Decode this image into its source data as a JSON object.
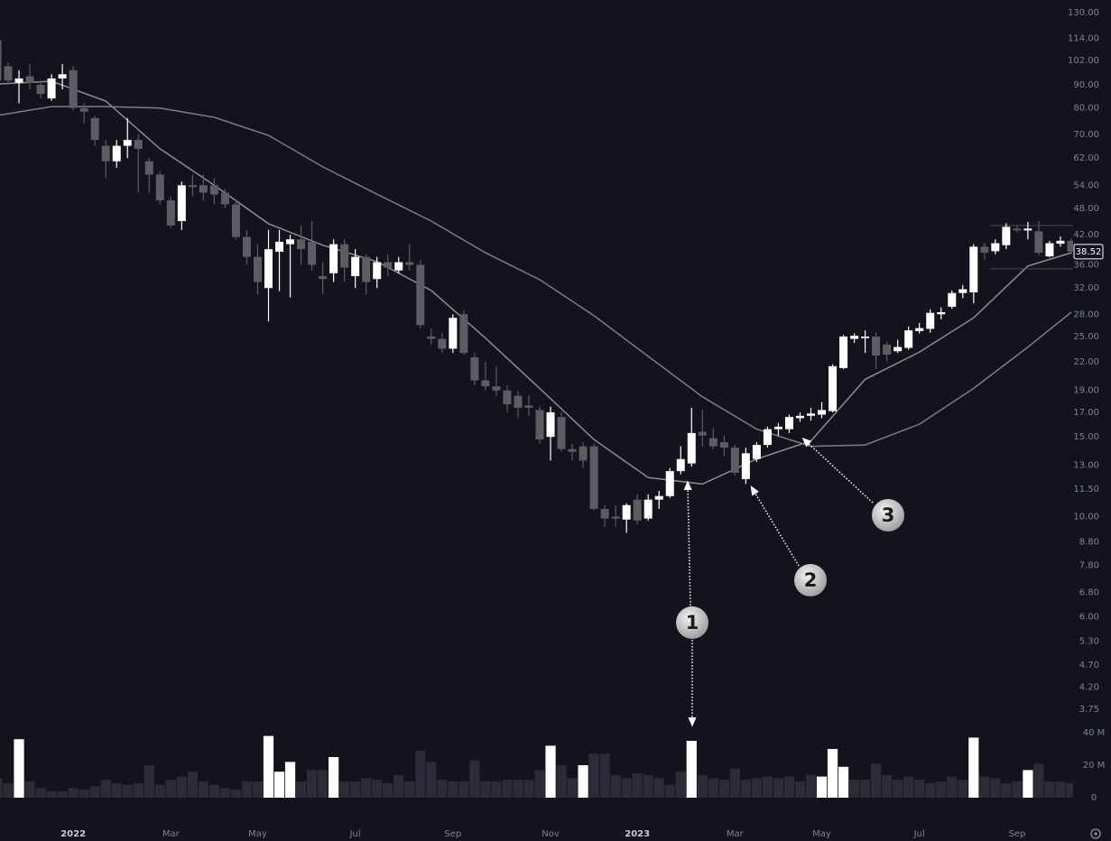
{
  "chart_data": {
    "type": "candlestick",
    "categories": [
      null,
      null,
      null,
      null,
      null,
      null,
      null,
      "2022",
      null,
      null,
      null,
      null,
      null,
      null,
      null,
      null,
      "Mar",
      null,
      null,
      null,
      null,
      null,
      null,
      null,
      "May",
      null,
      null,
      null,
      null,
      null,
      null,
      null,
      null,
      "Jul",
      null,
      null,
      null,
      null,
      null,
      null,
      null,
      null,
      "Sep",
      null,
      null,
      null,
      null,
      null,
      null,
      null,
      null,
      "Nov",
      null,
      null,
      null,
      null,
      null,
      null,
      null,
      "2023",
      null,
      null,
      null,
      null,
      null,
      null,
      null,
      null,
      "Mar",
      null,
      null,
      null,
      null,
      null,
      null,
      null,
      "May",
      null,
      null,
      null,
      null,
      null,
      null,
      null,
      null,
      "Jul",
      null,
      null,
      null,
      null,
      null,
      null,
      null,
      null,
      "Sep",
      null,
      null,
      null,
      null,
      null
    ],
    "open": [
      113,
      99,
      91,
      94,
      90,
      84,
      93,
      97,
      80,
      76,
      66,
      61,
      66,
      68,
      61,
      57,
      50,
      45,
      54,
      54,
      54,
      52,
      49,
      41.5,
      37.5,
      32,
      38.5,
      40,
      41,
      40.5,
      34,
      34.5,
      40,
      34,
      37.5,
      33.5,
      36.5,
      35,
      36.5,
      36,
      25,
      24.7,
      23.5,
      28,
      22.5,
      20,
      19.4,
      19,
      18.5,
      17.6,
      17.2,
      15,
      16.6,
      14.1,
      14.3,
      14.3,
      10.4,
      10,
      9.85,
      10.9,
      9.9,
      10.9,
      11.1,
      12.6,
      13.1,
      15.4,
      14.9,
      14.6,
      14.2,
      12.1,
      13.4,
      14.4,
      15.6,
      15.6,
      16.5,
      16.7,
      16.8,
      17.1,
      21.3,
      24.7,
      24.8,
      25,
      24,
      23.2,
      23.6,
      25.7,
      26,
      28,
      29.1,
      31.2,
      31.3,
      39.5,
      38.6,
      39.8,
      43.3,
      42.9,
      42.7,
      37.6,
      40.1,
      40.7
    ],
    "high": [
      114,
      101,
      97,
      100,
      92,
      95,
      100,
      99,
      82,
      77,
      68,
      68,
      76,
      70,
      62,
      58,
      51,
      55,
      57,
      57,
      56,
      53,
      50,
      43,
      40,
      43,
      43,
      42,
      44,
      45,
      36.5,
      41,
      41,
      39,
      38,
      37.5,
      38,
      37.5,
      40,
      37,
      26,
      25.5,
      28,
      28.5,
      23,
      22,
      21.5,
      19.5,
      19,
      18.5,
      17.5,
      17.5,
      17,
      14.5,
      14.6,
      14.5,
      10.6,
      10.6,
      10.7,
      11.2,
      11.2,
      11.4,
      12.8,
      14.3,
      17.4,
      17.2,
      15.7,
      15.1,
      14.4,
      14.2,
      14.6,
      15.8,
      16.1,
      16.8,
      17,
      17.4,
      17.9,
      21.7,
      25.2,
      25.4,
      25.8,
      25.5,
      24.4,
      24.6,
      26.3,
      26.8,
      28.7,
      29,
      31.6,
      32.5,
      40,
      40.3,
      41,
      44.5,
      44,
      44.8,
      45,
      40.7,
      41.6,
      41.2
    ],
    "low": [
      90,
      90,
      82,
      88,
      84,
      83,
      88,
      79,
      74,
      66,
      56,
      59,
      62,
      52,
      52,
      49,
      43.5,
      43,
      51,
      50,
      49,
      48,
      41,
      36,
      31,
      27,
      31.5,
      30.5,
      36,
      35,
      31,
      33,
      33,
      32,
      31,
      32,
      34,
      34.5,
      35,
      26,
      24,
      23,
      23,
      22.8,
      19.5,
      19,
      18.5,
      17,
      16.5,
      16.7,
      14.5,
      13.3,
      13.9,
      13.3,
      12.8,
      10.3,
      9.5,
      9.5,
      9.2,
      9.6,
      9.8,
      10.4,
      11,
      12.4,
      12.9,
      14.3,
      14.1,
      13.6,
      12.3,
      11.8,
      13.2,
      14.2,
      15.1,
      15.3,
      16.2,
      16.3,
      16.5,
      17,
      21.2,
      24.2,
      23,
      21.2,
      22,
      23,
      23.4,
      25.4,
      25.5,
      27.3,
      28.8,
      30.4,
      29.6,
      37,
      38,
      39,
      42.4,
      41,
      37.8,
      37.4,
      39.5,
      38
    ],
    "close": [
      92,
      92,
      93,
      91,
      86,
      93,
      95,
      80,
      78.5,
      68,
      61,
      66,
      68,
      65,
      57,
      50,
      44,
      54,
      53.5,
      52,
      51.5,
      49,
      41.5,
      37.5,
      33,
      39,
      40.5,
      41,
      39,
      36,
      33.5,
      40,
      35.5,
      37.5,
      33,
      36.5,
      35.5,
      36.5,
      36,
      26.5,
      24.7,
      23.5,
      27.5,
      23,
      20,
      19.4,
      19,
      17.7,
      17.4,
      17.4,
      14.8,
      17,
      14.1,
      13.9,
      13.3,
      10.4,
      9.9,
      9.9,
      10.6,
      9.8,
      10.9,
      11.1,
      12.6,
      13.4,
      15.3,
      15.1,
      14.3,
      14.2,
      12.5,
      13.8,
      14.4,
      15.6,
      15.8,
      16.6,
      16.7,
      16.9,
      17.2,
      21.5,
      25,
      25.1,
      25,
      22.7,
      22.8,
      23.7,
      25.8,
      26.1,
      28.2,
      28.3,
      31.2,
      31.8,
      39.5,
      38.3,
      40.2,
      43.7,
      42.9,
      43.3,
      38.3,
      40.2,
      40.7,
      38.52
    ],
    "up_color": "#ffffff",
    "down_color": "#5c5c63",
    "log_scale": true,
    "grid": false,
    "ylim": [
      3.75,
      130
    ],
    "yticks": [
      {
        "value": 130,
        "label": "130.00"
      },
      {
        "value": 114,
        "label": "114.00"
      },
      {
        "value": 102,
        "label": "102.00"
      },
      {
        "value": 90,
        "label": "90.00"
      },
      {
        "value": 80,
        "label": "80.00"
      },
      {
        "value": 70,
        "label": "70.00"
      },
      {
        "value": 62,
        "label": "62.00"
      },
      {
        "value": 54,
        "label": "54.00"
      },
      {
        "value": 48,
        "label": "48.00"
      },
      {
        "value": 42,
        "label": "42.00"
      },
      {
        "value": 36,
        "label": "36.00"
      },
      {
        "value": 32,
        "label": "32.00"
      },
      {
        "value": 28,
        "label": "28.00"
      },
      {
        "value": 25,
        "label": "25.00"
      },
      {
        "value": 22,
        "label": "22.00"
      },
      {
        "value": 19,
        "label": "19.00"
      },
      {
        "value": 17,
        "label": "17.00"
      },
      {
        "value": 15,
        "label": "15.00"
      },
      {
        "value": 13,
        "label": "13.00"
      },
      {
        "value": 11.5,
        "label": "11.50"
      },
      {
        "value": 10,
        "label": "10.00"
      },
      {
        "value": 8.8,
        "label": "8.80"
      },
      {
        "value": 7.8,
        "label": "7.80"
      },
      {
        "value": 6.8,
        "label": "6.80"
      },
      {
        "value": 6,
        "label": "6.00"
      },
      {
        "value": 5.3,
        "label": "5.30"
      },
      {
        "value": 4.7,
        "label": "4.70"
      },
      {
        "value": 4.2,
        "label": "4.20"
      },
      {
        "value": 3.75,
        "label": "3.75"
      }
    ],
    "moving_averages": [
      {
        "color": "#8c8c94",
        "x": [
          0,
          5,
          10,
          15,
          20,
          25,
          30,
          35,
          40,
          45,
          50,
          55,
          60,
          65,
          70,
          75,
          80,
          85,
          90,
          95,
          99
        ],
        "values": [
          90.4,
          91.7,
          82.9,
          65,
          54,
          44.4,
          39.8,
          36.6,
          31.6,
          24.8,
          19.2,
          14.8,
          12.2,
          11.8,
          13.4,
          14.7,
          20.1,
          23.1,
          27.5,
          35.8,
          38.3
        ]
      },
      {
        "color": "#7c7c84",
        "x": [
          0,
          5,
          10,
          15,
          20,
          25,
          30,
          35,
          40,
          45,
          50,
          55,
          60,
          65,
          70,
          75,
          80,
          85,
          90,
          95,
          99
        ],
        "values": [
          77,
          80.6,
          80.6,
          80,
          76.3,
          69.6,
          59.3,
          51.6,
          45,
          38.3,
          33.4,
          27.8,
          22.6,
          18.4,
          15.6,
          14.3,
          14.4,
          16,
          19.2,
          23.7,
          28.3
        ]
      }
    ],
    "levels": {
      "color": "#4a4a52",
      "from": 92,
      "values": [
        44,
        35.3
      ]
    },
    "volume": {
      "values": [
        12,
        9,
        36,
        10,
        6,
        4,
        4,
        6,
        5,
        7,
        11,
        9,
        8,
        9,
        20,
        8,
        11,
        13,
        16,
        10,
        8,
        6,
        5,
        10,
        10,
        38,
        16,
        22,
        10,
        17,
        17,
        25,
        10,
        10,
        12,
        11,
        9,
        14,
        10,
        29,
        22,
        11,
        10,
        10,
        23,
        10,
        10,
        11,
        11,
        11,
        17,
        32,
        20,
        12,
        20,
        27,
        27,
        14,
        12,
        15,
        14,
        12,
        8,
        16,
        35,
        14,
        12,
        11,
        18,
        11,
        12,
        13,
        12,
        13,
        10,
        14,
        13,
        30,
        19,
        11,
        11,
        21,
        14,
        11,
        13,
        11,
        9,
        10,
        13,
        11,
        37,
        13,
        12,
        9,
        10,
        17,
        21,
        10,
        10,
        9
      ],
      "colors": [
        "#2c2c38",
        "#2c2c38",
        "#ffffff",
        "#2c2c38",
        "#2c2c38",
        "#2c2c38",
        "#2c2c38",
        "#2c2c38",
        "#2c2c38",
        "#2c2c38",
        "#2c2c38",
        "#2c2c38",
        "#2c2c38",
        "#2c2c38",
        "#2c2c38",
        "#2c2c38",
        "#2c2c38",
        "#2c2c38",
        "#2c2c38",
        "#2c2c38",
        "#2c2c38",
        "#2c2c38",
        "#2c2c38",
        "#2c2c38",
        "#2c2c38",
        "#ffffff",
        "#ffffff",
        "#ffffff",
        "#2c2c38",
        "#2c2c38",
        "#2c2c38",
        "#ffffff",
        "#2c2c38",
        "#2c2c38",
        "#2c2c38",
        "#2c2c38",
        "#2c2c38",
        "#2c2c38",
        "#2c2c38",
        "#2c2c38",
        "#2c2c38",
        "#2c2c38",
        "#2c2c38",
        "#2c2c38",
        "#2c2c38",
        "#2c2c38",
        "#2c2c38",
        "#2c2c38",
        "#2c2c38",
        "#2c2c38",
        "#2c2c38",
        "#ffffff",
        "#2c2c38",
        "#2c2c38",
        "#ffffff",
        "#2c2c38",
        "#2c2c38",
        "#2c2c38",
        "#2c2c38",
        "#2c2c38",
        "#2c2c38",
        "#2c2c38",
        "#2c2c38",
        "#2c2c38",
        "#ffffff",
        "#2c2c38",
        "#2c2c38",
        "#2c2c38",
        "#2c2c38",
        "#2c2c38",
        "#2c2c38",
        "#2c2c38",
        "#2c2c38",
        "#2c2c38",
        "#2c2c38",
        "#2c2c38",
        "#ffffff",
        "#ffffff",
        "#ffffff",
        "#2c2c38",
        "#2c2c38",
        "#2c2c38",
        "#2c2c38",
        "#2c2c38",
        "#2c2c38",
        "#2c2c38",
        "#2c2c38",
        "#2c2c38",
        "#2c2c38",
        "#2c2c38",
        "#ffffff",
        "#2c2c38",
        "#2c2c38",
        "#2c2c38",
        "#2c2c38",
        "#ffffff",
        "#2c2c38",
        "#2c2c38",
        "#2c2c38",
        "#2c2c38"
      ],
      "ylim": [
        0,
        40
      ],
      "yticks": [
        {
          "value": 40,
          "label": "40 M"
        },
        {
          "value": 20,
          "label": "20 M"
        },
        0
      ]
    },
    "annotations": [
      "1",
      "2",
      "3"
    ]
  }
}
